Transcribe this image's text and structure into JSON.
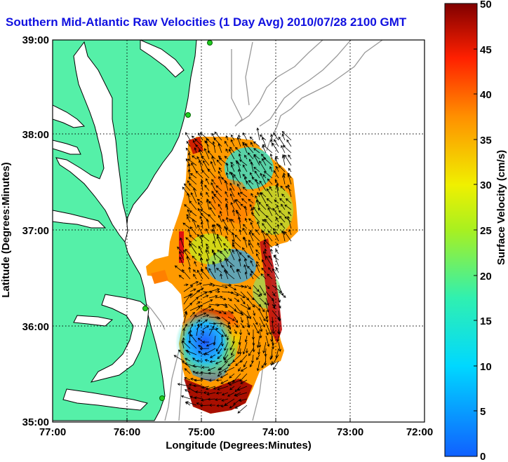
{
  "title": "Southern Mid-Atlantic Raw Velocities (1 Day Avg) 2010/07/28 2100 GMT",
  "map": {
    "xlabel": "Longitude (Degrees:Minutes)",
    "ylabel": "Latitude (Degrees:Minutes)",
    "xticks": [
      "77:00",
      "76:00",
      "75:00",
      "74:00",
      "73:00",
      "72:00"
    ],
    "yticks": [
      "39:00",
      "38:00",
      "37:00",
      "36:00",
      "35:00"
    ],
    "colors": {
      "land": "#55f0a8",
      "coast": "#000000",
      "bathymetry": "#999999",
      "grid": "#000000",
      "station": "#22cc22"
    }
  },
  "colorbar": {
    "label": "Surface Velocity (cm/s)",
    "ticks": [
      "50",
      "45",
      "40",
      "35",
      "30",
      "25",
      "20",
      "15",
      "10",
      "5",
      "0"
    ],
    "range": [
      0,
      50
    ]
  }
}
